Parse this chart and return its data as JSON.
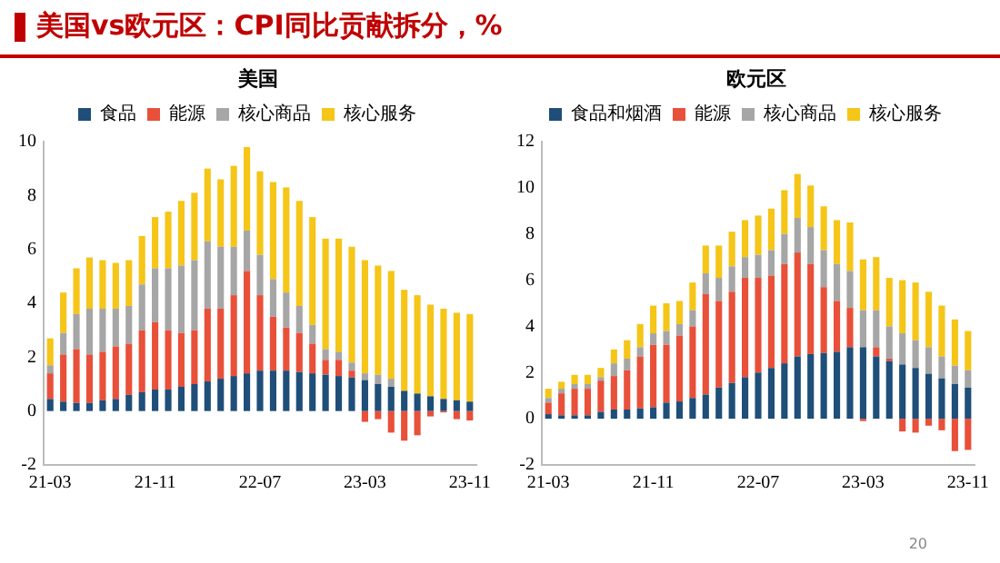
{
  "chart_data": [
    {
      "type": "bar",
      "title": "美国vs欧元区：CPI同比贡献拆分，%",
      "subtitle": "美国",
      "stacked": true,
      "legend": "top",
      "grid": false,
      "categories": [
        "21-03",
        null,
        null,
        null,
        null,
        null,
        null,
        null,
        "21-11",
        null,
        null,
        null,
        null,
        null,
        null,
        null,
        "22-07",
        null,
        null,
        null,
        null,
        null,
        null,
        null,
        "23-03",
        null,
        null,
        null,
        null,
        null,
        null,
        null,
        "23-11"
      ],
      "ylim": [
        -2,
        10
      ],
      "yticks": [
        -2,
        0,
        2,
        4,
        6,
        8,
        10
      ],
      "series": [
        {
          "name": "食品",
          "color": "#1f4e79",
          "values": [
            0.45,
            0.35,
            0.3,
            0.3,
            0.4,
            0.45,
            0.6,
            0.7,
            0.8,
            0.8,
            0.9,
            1.0,
            1.1,
            1.2,
            1.3,
            1.4,
            1.5,
            1.5,
            1.5,
            1.45,
            1.4,
            1.35,
            1.3,
            1.25,
            1.15,
            1.0,
            0.9,
            0.75,
            0.65,
            0.55,
            0.45,
            0.4,
            0.35
          ]
        },
        {
          "name": "能源",
          "color": "#e8503a",
          "values": [
            0.95,
            1.75,
            2.0,
            1.8,
            1.8,
            1.95,
            1.9,
            2.3,
            2.5,
            2.2,
            2.0,
            2.0,
            2.7,
            2.6,
            3.0,
            3.8,
            2.8,
            2.0,
            1.6,
            1.45,
            1.1,
            0.55,
            0.6,
            0.25,
            -0.4,
            -0.3,
            -0.8,
            -1.1,
            -0.9,
            -0.2,
            -0.05,
            -0.3,
            -0.35
          ]
        },
        {
          "name": "核心商品",
          "color": "#a6a6a6",
          "values": [
            0.3,
            0.8,
            1.3,
            1.7,
            1.6,
            1.4,
            1.4,
            1.7,
            2.0,
            2.3,
            2.5,
            2.6,
            2.5,
            2.3,
            1.8,
            1.5,
            1.5,
            1.4,
            1.3,
            1.0,
            0.7,
            0.4,
            0.3,
            0.3,
            0.25,
            0.35,
            0.3,
            null,
            null,
            null,
            0.0,
            null,
            0.0
          ]
        },
        {
          "name": "核心服务",
          "color": "#f5c518",
          "values": [
            1.0,
            1.5,
            1.7,
            1.9,
            1.8,
            1.7,
            1.7,
            1.8,
            1.9,
            2.1,
            2.4,
            2.5,
            2.7,
            2.5,
            3.0,
            3.1,
            3.1,
            3.6,
            3.9,
            3.9,
            4.0,
            4.1,
            4.2,
            4.3,
            4.2,
            4.05,
            4.0,
            3.75,
            3.65,
            3.4,
            3.35,
            3.25,
            3.25
          ]
        }
      ]
    },
    {
      "type": "bar",
      "title": "欧元区",
      "stacked": true,
      "legend": "top",
      "grid": false,
      "annotations": [
        "20"
      ],
      "categories": [
        "21-03",
        null,
        null,
        null,
        null,
        null,
        null,
        null,
        "21-11",
        null,
        null,
        null,
        null,
        null,
        null,
        null,
        "22-07",
        null,
        null,
        null,
        null,
        null,
        null,
        null,
        "23-03",
        null,
        null,
        null,
        null,
        null,
        null,
        null,
        "23-11"
      ],
      "ylim": [
        -2,
        12
      ],
      "yticks": [
        -2,
        0,
        2,
        4,
        6,
        8,
        10,
        12
      ],
      "series": [
        {
          "name": "食品和烟酒",
          "color": "#1f4e79",
          "values": [
            0.2,
            0.15,
            0.15,
            0.15,
            0.3,
            0.4,
            0.4,
            0.45,
            0.5,
            0.7,
            0.75,
            0.9,
            1.05,
            1.35,
            1.55,
            1.8,
            2.0,
            2.2,
            2.4,
            2.7,
            2.8,
            2.85,
            2.9,
            3.1,
            3.1,
            2.7,
            2.5,
            2.35,
            2.2,
            1.95,
            1.75,
            1.5,
            1.35
          ]
        },
        {
          "name": "能源",
          "color": "#e8503a",
          "values": [
            0.5,
            0.95,
            1.15,
            1.15,
            1.35,
            1.45,
            1.7,
            2.25,
            2.7,
            2.5,
            2.85,
            3.1,
            4.35,
            3.75,
            3.95,
            4.3,
            4.1,
            4.0,
            4.3,
            4.5,
            3.9,
            2.85,
            2.2,
            1.7,
            -0.1,
            0.4,
            0.1,
            -0.55,
            -0.6,
            -0.3,
            -0.5,
            -1.4,
            -1.35
          ]
        },
        {
          "name": "核心商品",
          "color": "#a6a6a6",
          "values": [
            0.2,
            0.2,
            0.2,
            0.2,
            0.15,
            0.55,
            0.5,
            0.4,
            0.5,
            0.6,
            0.5,
            0.7,
            0.9,
            1.0,
            1.1,
            0.9,
            1.0,
            1.1,
            1.3,
            1.5,
            1.6,
            1.6,
            1.6,
            1.6,
            1.6,
            1.6,
            1.4,
            1.35,
            1.2,
            1.15,
            0.95,
            0.8,
            0.75
          ]
        },
        {
          "name": "核心服务",
          "color": "#f5c518",
          "values": [
            0.4,
            0.3,
            0.4,
            0.4,
            0.4,
            0.6,
            0.8,
            1.0,
            1.2,
            1.2,
            1.0,
            1.2,
            1.2,
            1.4,
            1.5,
            1.6,
            1.7,
            1.8,
            1.9,
            1.9,
            1.8,
            1.9,
            1.9,
            2.1,
            2.2,
            2.3,
            2.1,
            2.3,
            2.5,
            2.4,
            2.2,
            2.0,
            1.7
          ]
        }
      ]
    }
  ]
}
